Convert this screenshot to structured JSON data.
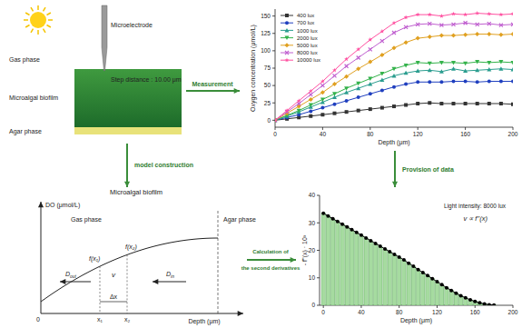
{
  "diagram": {
    "setup": {
      "microelectrode": "Microelectrode",
      "step": "Step distance : 10.00 μm",
      "gas": "Gas phase",
      "biofilm": "Microalgal biofilm",
      "agar": "Agar phase"
    },
    "arrows": {
      "measurement": "Measurement",
      "model": "model construction",
      "provision": "Provision of data",
      "calc": [
        "Calculation of",
        "the second derivatives"
      ]
    },
    "model": {
      "title": "Microalgal biofilm",
      "y_label": "DO (μmol/L)",
      "gas": "Gas phase",
      "agar": "Agar phase",
      "fx1": "f(x₁)",
      "fx2": "f(x₂)",
      "v": "v",
      "d_out": {
        "main": "D",
        "sub": "out"
      },
      "d_in": {
        "main": "D",
        "sub": "in"
      },
      "dx": "Δx",
      "x1": "x₁",
      "x2": "x₂",
      "origin": "0",
      "x_label": "Depth (μm)"
    }
  },
  "chart_data": [
    {
      "type": "line",
      "y_label": "Oxygen concentration (μmol/L)",
      "x_label": "Depth (μm)",
      "x": [
        0,
        10,
        20,
        30,
        40,
        50,
        60,
        70,
        80,
        90,
        100,
        110,
        120,
        130,
        140,
        150,
        160,
        170,
        180,
        190,
        200
      ],
      "series": [
        {
          "name": "400 lux",
          "color": "#333333",
          "marker": "square",
          "values": [
            0,
            2,
            4,
            6,
            8,
            10,
            12,
            14,
            16,
            18,
            20,
            22,
            24,
            25,
            24,
            24,
            24,
            24,
            24,
            24,
            23
          ]
        },
        {
          "name": "700 lux",
          "color": "#1f3fbf",
          "marker": "circle",
          "values": [
            0,
            4,
            8,
            13,
            18,
            23,
            28,
            33,
            38,
            43,
            48,
            52,
            55,
            55,
            55,
            56,
            56,
            55,
            56,
            56,
            56
          ]
        },
        {
          "name": "1000 lux",
          "color": "#2a9d8f",
          "marker": "triangle",
          "values": [
            0,
            6,
            12,
            19,
            26,
            33,
            40,
            46,
            52,
            58,
            64,
            68,
            71,
            72,
            70,
            74,
            71,
            72,
            73,
            74,
            73
          ]
        },
        {
          "name": "2000 lux",
          "color": "#33b24a",
          "marker": "triangle-down",
          "values": [
            0,
            7,
            14,
            22,
            30,
            38,
            46,
            53,
            60,
            67,
            74,
            79,
            83,
            82,
            83,
            83,
            82,
            84,
            83,
            84,
            83
          ]
        },
        {
          "name": "5000 lux",
          "color": "#e0a020",
          "marker": "diamond",
          "values": [
            0,
            10,
            20,
            30,
            40,
            52,
            63,
            74,
            84,
            94,
            104,
            112,
            118,
            120,
            122,
            122,
            123,
            124,
            124,
            123,
            124
          ]
        },
        {
          "name": "8000 lux",
          "color": "#c060d0",
          "marker": "cross",
          "values": [
            0,
            12,
            24,
            37,
            50,
            64,
            78,
            90,
            102,
            114,
            126,
            134,
            138,
            139,
            137,
            138,
            140,
            138,
            139,
            137,
            138
          ]
        },
        {
          "name": "10000 lux",
          "color": "#ff4fa0",
          "marker": "star",
          "values": [
            0,
            14,
            28,
            42,
            56,
            72,
            88,
            102,
            116,
            128,
            140,
            148,
            152,
            152,
            150,
            153,
            152,
            154,
            153,
            152,
            153
          ]
        }
      ],
      "xlim": [
        0,
        200
      ],
      "ylim": [
        -10,
        160
      ],
      "xticks": [
        0,
        40,
        80,
        120,
        160,
        200
      ],
      "yticks": [
        0,
        25,
        50,
        75,
        100,
        125,
        150
      ],
      "legend": "upper left",
      "grid": false
    },
    {
      "type": "bar",
      "y_label": "- f''(x) · 10³",
      "x_label": "Depth (μm)",
      "annotations": [
        "Light intensity: 8000 lux",
        "v ∝ f''(x)"
      ],
      "x": [
        0,
        5,
        10,
        15,
        20,
        25,
        30,
        35,
        40,
        45,
        50,
        55,
        60,
        65,
        70,
        75,
        80,
        85,
        90,
        95,
        100,
        105,
        110,
        115,
        120,
        125,
        130,
        135,
        140,
        145,
        150,
        155,
        160,
        165,
        170,
        175,
        180
      ],
      "series": [
        {
          "type": "bar",
          "color": "#a6dba0",
          "values": [
            33.5,
            32.5,
            31.5,
            30.5,
            29.5,
            28.5,
            27.5,
            26.5,
            25.5,
            24.5,
            23.5,
            22.5,
            21.5,
            20.5,
            19.5,
            18.5,
            17.5,
            16.5,
            15.3,
            14.2,
            13,
            11.9,
            10.8,
            9.7,
            8.6,
            7.5,
            6.4,
            5.4,
            4.4,
            3.5,
            2.7,
            2,
            1.4,
            0.9,
            0.5,
            0.2,
            0.1
          ]
        },
        {
          "type": "line",
          "color": "#000000",
          "marker": "circle",
          "values": [
            33.5,
            32.5,
            31.5,
            30.5,
            29.5,
            28.5,
            27.5,
            26.5,
            25.5,
            24.5,
            23.5,
            22.5,
            21.5,
            20.5,
            19.5,
            18.5,
            17.5,
            16.5,
            15.3,
            14.2,
            13,
            11.9,
            10.8,
            9.7,
            8.6,
            7.5,
            6.4,
            5.4,
            4.4,
            3.5,
            2.7,
            2,
            1.4,
            0.9,
            0.5,
            0.2,
            0.1
          ]
        }
      ],
      "xlim": [
        -4,
        200
      ],
      "ylim": [
        0,
        40
      ],
      "xticks": [
        0,
        40,
        80,
        120,
        160,
        200
      ],
      "yticks": [
        0,
        10,
        20,
        30,
        40
      ],
      "grid": false
    }
  ]
}
